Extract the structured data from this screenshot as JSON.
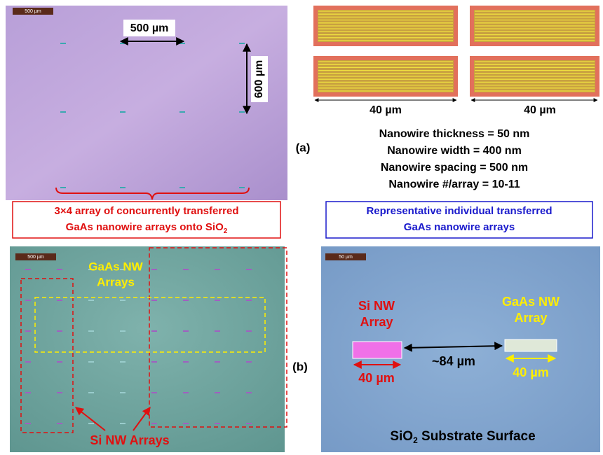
{
  "panel_a": {
    "label": "(a)",
    "left_image": {
      "scale_bar": "500 µm",
      "horizontal_spacing": "500 µm",
      "vertical_spacing": "600 µm"
    },
    "left_caption": {
      "lines": [
        "3×4 array of concurrently transferred",
        "GaAs nanowire arrays onto SiO"
      ],
      "subscript": "2"
    },
    "right_images": {
      "width_labels": [
        "40 µm",
        "40 µm"
      ]
    },
    "specs": [
      "Nanowire thickness = 50 nm",
      "Nanowire width = 400 nm",
      "Nanowire spacing = 500 nm",
      "Nanowire #/array = 10-11"
    ],
    "right_caption": {
      "lines": [
        "Representative individual transferred",
        "GaAs nanowire arrays"
      ]
    }
  },
  "panel_b": {
    "label": "(b)",
    "left_image": {
      "scale_bar": "500 µm",
      "gaas_label": [
        "GaAs NW",
        "Arrays"
      ],
      "si_label": "Si NW Arrays"
    },
    "right_image": {
      "scale_bar": "50 µm",
      "si_label": [
        "Si NW",
        "Array"
      ],
      "gaas_label": [
        "GaAs NW",
        "Array"
      ],
      "distance": "~84 µm",
      "si_width": "40 µm",
      "gaas_width": "40 µm",
      "substrate": {
        "text": "SiO",
        "subscript": "2",
        "suffix": " Substrate Surface"
      }
    }
  }
}
